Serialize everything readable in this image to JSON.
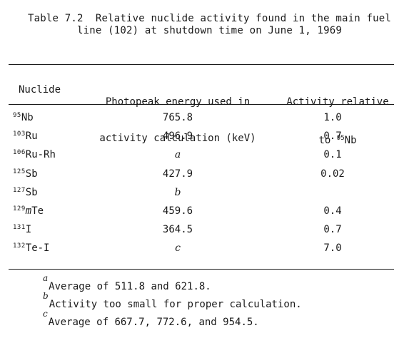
{
  "caption": {
    "line1": "Table 7.2  Relative nuclide activity found in the main fuel",
    "line2": "line (102) at shutdown time on June 1, 1969"
  },
  "headers": {
    "nuclide": "Nuclide",
    "energy_line1": "Photopeak energy used in",
    "energy_line2": "activity calculation (keV)",
    "activity_line1": "Activity relative",
    "activity_line2_prefix": "to ",
    "activity_line2_mass": "95",
    "activity_line2_element": "Nb"
  },
  "rows": [
    {
      "mass": "95",
      "iso": "",
      "element": "Nb",
      "energy": "765.8",
      "activity": "1.0"
    },
    {
      "mass": "103",
      "iso": "",
      "element": "Ru",
      "energy": "496.9",
      "activity": "0.7"
    },
    {
      "mass": "106",
      "iso": "",
      "element": "Ru-Rh",
      "energy": "a",
      "activity": "0.1"
    },
    {
      "mass": "125",
      "iso": "",
      "element": "Sb",
      "energy": "427.9",
      "activity": "0.02"
    },
    {
      "mass": "127",
      "iso": "",
      "element": "Sb",
      "energy": "b",
      "activity": ""
    },
    {
      "mass": "129",
      "iso": "m",
      "element": "Te",
      "energy": "459.6",
      "activity": "0.4"
    },
    {
      "mass": "131",
      "iso": "",
      "element": "I",
      "energy": "364.5",
      "activity": "0.7"
    },
    {
      "mass": "132",
      "iso": "",
      "element": "Te-I",
      "energy": "c",
      "activity": "7.0"
    }
  ],
  "footnotes": [
    {
      "mark": "a",
      "text": "Average of 511.8 and 621.8."
    },
    {
      "mark": "b",
      "text": "Activity too small for proper calculation."
    },
    {
      "mark": "c",
      "text": "Average of 667.7, 772.6, and 954.5."
    }
  ]
}
